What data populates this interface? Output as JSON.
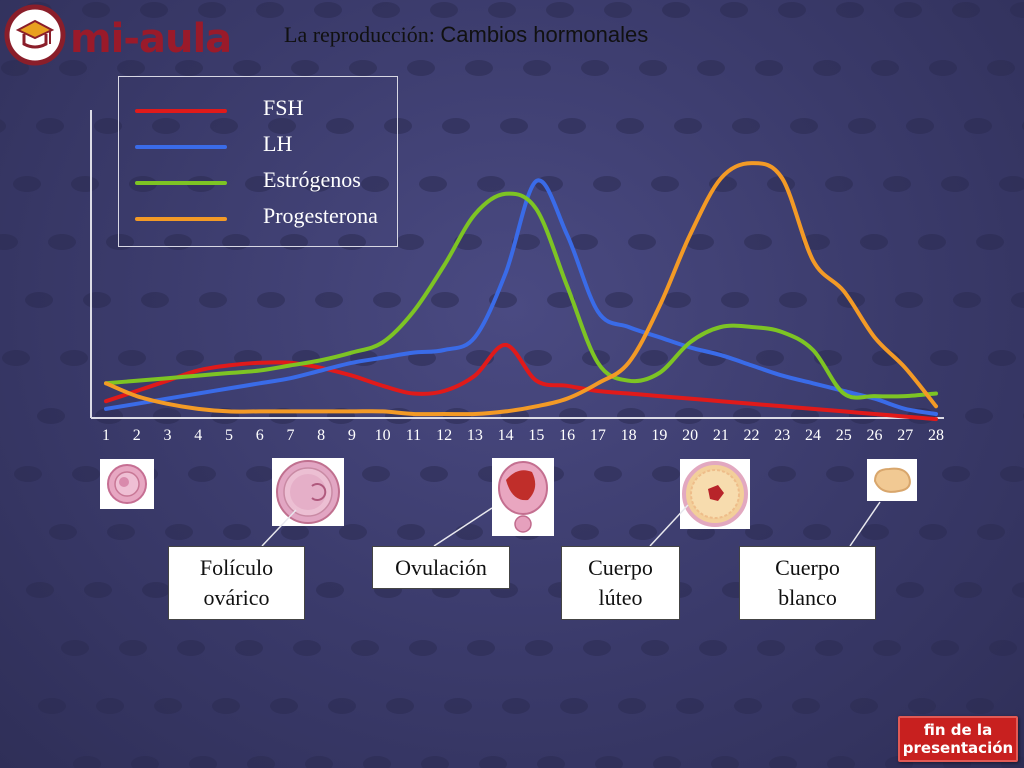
{
  "header": {
    "title_part1": "La reproducción:",
    "title_part2": "Cambios hormonales",
    "logo_text": "mi-aula"
  },
  "chart_data": {
    "type": "line",
    "x": [
      1,
      2,
      3,
      4,
      5,
      6,
      7,
      8,
      9,
      10,
      11,
      12,
      13,
      14,
      15,
      16,
      17,
      18,
      19,
      20,
      21,
      22,
      23,
      24,
      25,
      26,
      27,
      28
    ],
    "x_tick_labels": [
      "1",
      "2",
      "3",
      "4",
      "5",
      "6",
      "7",
      "8",
      "9",
      "10",
      "11",
      "12",
      "13",
      "14",
      "15",
      "16",
      "17",
      "18",
      "19",
      "20",
      "21",
      "22",
      "23",
      "24",
      "25",
      "26",
      "27",
      "28"
    ],
    "ylim": [
      0,
      100
    ],
    "legend_position": "top-left",
    "grid": false,
    "series": [
      {
        "name": "FSH",
        "color": "#e01a1a",
        "values": [
          5,
          9,
          13,
          17,
          19,
          20,
          20,
          18,
          15,
          11,
          8,
          9,
          15,
          27,
          13,
          11,
          9,
          8,
          7,
          6,
          5,
          4,
          3,
          2,
          1,
          0,
          -1,
          -2
        ]
      },
      {
        "name": "LH",
        "color": "#3a6be8",
        "values": [
          2,
          4,
          6,
          8,
          10,
          12,
          14,
          17,
          20,
          22,
          24,
          25,
          30,
          55,
          91,
          70,
          40,
          34,
          30,
          26,
          23,
          19,
          15,
          12,
          9,
          6,
          2,
          0
        ]
      },
      {
        "name": "Estrógenos",
        "color": "#7dc424",
        "values": [
          12,
          13,
          14,
          15,
          16,
          17,
          19,
          21,
          24,
          28,
          40,
          58,
          78,
          86,
          80,
          50,
          20,
          13,
          16,
          28,
          34,
          34,
          32,
          25,
          8,
          7,
          7,
          8
        ]
      },
      {
        "name": "Progesterona",
        "color": "#f39a26",
        "values": [
          12,
          7,
          4,
          2,
          1,
          1,
          1,
          1,
          1,
          1,
          0,
          0,
          0,
          1,
          3,
          6,
          12,
          20,
          42,
          70,
          92,
          98,
          92,
          60,
          48,
          30,
          18,
          3
        ]
      }
    ]
  },
  "labels": {
    "foliculo": [
      "Folículo",
      "ovárico"
    ],
    "ovulacion": [
      "Ovulación"
    ],
    "cuerpo_luteo": [
      "Cuerpo",
      "lúteo"
    ],
    "cuerpo_blanco": [
      "Cuerpo",
      "blanco"
    ]
  },
  "end_button": [
    "fin de la",
    "presentación"
  ]
}
